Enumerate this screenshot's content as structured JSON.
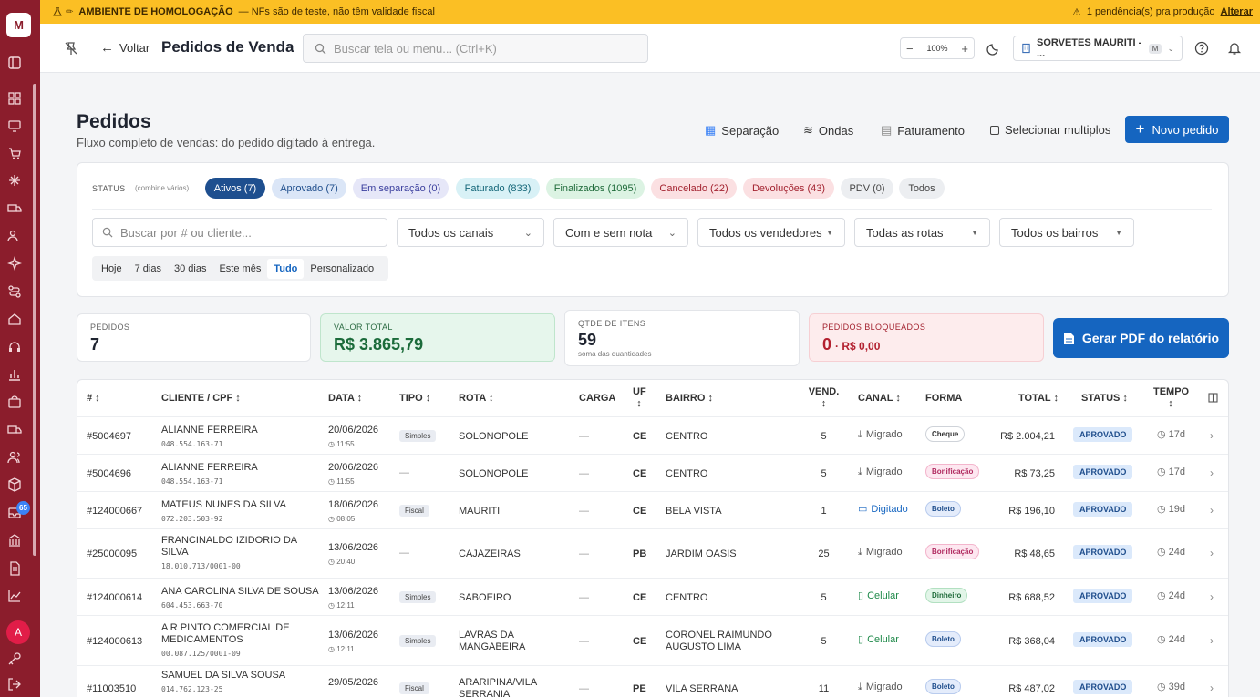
{
  "banner": {
    "label": "AMBIENTE DE HOMOLOGAÇÃO",
    "message": "— NFs são de teste, não têm validade fiscal",
    "pending": "1 pendência(s) pra produção",
    "action": "Alterar"
  },
  "header": {
    "back": "Voltar",
    "title": "Pedidos de Venda",
    "search_placeholder": "Buscar tela ou menu...  (Ctrl+K)",
    "zoom": "100%",
    "company": "SORVETES MAURITI - ...",
    "company_badge": "M"
  },
  "sidebar": {
    "badge": "65",
    "avatar": "A"
  },
  "page": {
    "title": "Pedidos",
    "subtitle": "Fluxo completo de vendas: do pedido digitado à entrega."
  },
  "actions": {
    "separacao": "Separação",
    "ondas": "Ondas",
    "faturamento": "Faturamento",
    "multiplos": "Selecionar multiplos",
    "novo": "Novo pedido"
  },
  "filters": {
    "status_label": "STATUS",
    "status_hint": "(combine vários)",
    "chips": [
      "Ativos (7)",
      "Aprovado (7)",
      "Em separação (0)",
      "Faturado (833)",
      "Finalizados (1095)",
      "Cancelado (22)",
      "Devoluções (43)",
      "PDV (0)",
      "Todos"
    ],
    "search_placeholder": "Buscar por # ou cliente...",
    "canais": "Todos os canais",
    "nota": "Com e sem nota",
    "vendedores": "Todos os vendedores",
    "rotas": "Todas as rotas",
    "bairros": "Todos os bairros",
    "ranges": [
      "Hoje",
      "7 dias",
      "30 dias",
      "Este mês",
      "Tudo",
      "Personalizado"
    ]
  },
  "kpis": {
    "pedidos_label": "PEDIDOS",
    "pedidos": "7",
    "valor_label": "VALOR TOTAL",
    "valor": "R$ 3.865,79",
    "itens_label": "QTDE DE ITENS",
    "itens": "59",
    "itens_sub": "soma das quantidades",
    "bloq_label": "PEDIDOS BLOQUEADOS",
    "bloq": "0",
    "bloq_valor": "· R$ 0,00",
    "pdf": "Gerar PDF do relatório"
  },
  "table": {
    "headers": {
      "num": "# ↕",
      "cliente": "CLIENTE / CPF ↕",
      "data": "DATA ↕",
      "tipo": "TIPO ↕",
      "rota": "ROTA ↕",
      "carga": "CARGA",
      "uf": "UF",
      "uf2": "↕",
      "bairro": "BAIRRO ↕",
      "vend": "VEND.",
      "vend2": "↕",
      "canal": "CANAL ↕",
      "forma": "FORMA",
      "total": "TOTAL ↕",
      "status": "STATUS ↕",
      "tempo": "TEMPO",
      "tempo2": "↕"
    },
    "rows": [
      {
        "num": "#5004697",
        "cliente": "ALIANNE FERREIRA",
        "doc": "048.554.163-71",
        "data": "20/06/2026",
        "hora": "11:55",
        "tipo": "Simples",
        "rota": "SOLONOPOLE",
        "carga": "—",
        "uf": "CE",
        "bairro": "CENTRO",
        "vend": "5",
        "canal": "Migrado",
        "forma": "Cheque",
        "total": "R$ 2.004,21",
        "status": "APROVADO",
        "tempo": "17d"
      },
      {
        "num": "#5004696",
        "cliente": "ALIANNE FERREIRA",
        "doc": "048.554.163-71",
        "data": "20/06/2026",
        "hora": "11:55",
        "tipo": "—",
        "rota": "SOLONOPOLE",
        "carga": "—",
        "uf": "CE",
        "bairro": "CENTRO",
        "vend": "5",
        "canal": "Migrado",
        "forma": "Bonificação",
        "total": "R$ 73,25",
        "status": "APROVADO",
        "tempo": "17d"
      },
      {
        "num": "#124000667",
        "cliente": "MATEUS NUNES DA SILVA",
        "doc": "072.203.503-92",
        "data": "18/06/2026",
        "hora": "08:05",
        "tipo": "Fiscal",
        "rota": "MAURITI",
        "carga": "—",
        "uf": "CE",
        "bairro": "BELA VISTA",
        "vend": "1",
        "canal": "Digitado",
        "forma": "Boleto",
        "total": "R$ 196,10",
        "status": "APROVADO",
        "tempo": "19d"
      },
      {
        "num": "#25000095",
        "cliente": "FRANCINALDO IZIDORIO DA",
        "cliente2": "SILVA",
        "doc": "18.010.713/0001-00",
        "data": "13/06/2026",
        "hora": "20:40",
        "tipo": "—",
        "rota": "CAJAZEIRAS",
        "carga": "—",
        "uf": "PB",
        "bairro": "JARDIM OASIS",
        "vend": "25",
        "canal": "Migrado",
        "forma": "Bonificação",
        "total": "R$ 48,65",
        "status": "APROVADO",
        "tempo": "24d"
      },
      {
        "num": "#124000614",
        "cliente": "ANA CAROLINA SILVA DE SOUSA",
        "doc": "604.453.663-70",
        "data": "13/06/2026",
        "hora": "12:11",
        "tipo": "Simples",
        "rota": "SABOEIRO",
        "carga": "—",
        "uf": "CE",
        "bairro": "CENTRO",
        "vend": "5",
        "canal": "Celular",
        "forma": "Dinheiro",
        "total": "R$ 688,52",
        "status": "APROVADO",
        "tempo": "24d"
      },
      {
        "num": "#124000613",
        "cliente": "A R PINTO COMERCIAL DE",
        "cliente2": "MEDICAMENTOS",
        "doc": "00.087.125/0001-09",
        "data": "13/06/2026",
        "hora": "12:11",
        "tipo": "Simples",
        "rota": "LAVRAS DA",
        "rota2": "MANGABEIRA",
        "carga": "—",
        "uf": "CE",
        "bairro": "CORONEL RAIMUNDO",
        "bairro2": "AUGUSTO LIMA",
        "vend": "5",
        "canal": "Celular",
        "forma": "Boleto",
        "total": "R$ 368,04",
        "status": "APROVADO",
        "tempo": "24d"
      },
      {
        "num": "#11003510",
        "cliente": "SAMUEL DA SILVA SOUSA",
        "doc": "014.762.123-25",
        "data": "29/05/2026",
        "hora": "",
        "tipo": "Fiscal",
        "rota": "ARARIPINA/VILA",
        "rota2": "SERRANIA",
        "carga": "—",
        "uf": "PE",
        "bairro": "VILA SERRANA",
        "vend": "11",
        "canal": "Migrado",
        "forma": "Boleto",
        "total": "R$ 487,02",
        "status": "APROVADO",
        "tempo": "39d"
      }
    ]
  },
  "colors": {
    "sidebar": "#8b1d2c",
    "banner": "#fbbf24",
    "primary": "#1565c0"
  }
}
